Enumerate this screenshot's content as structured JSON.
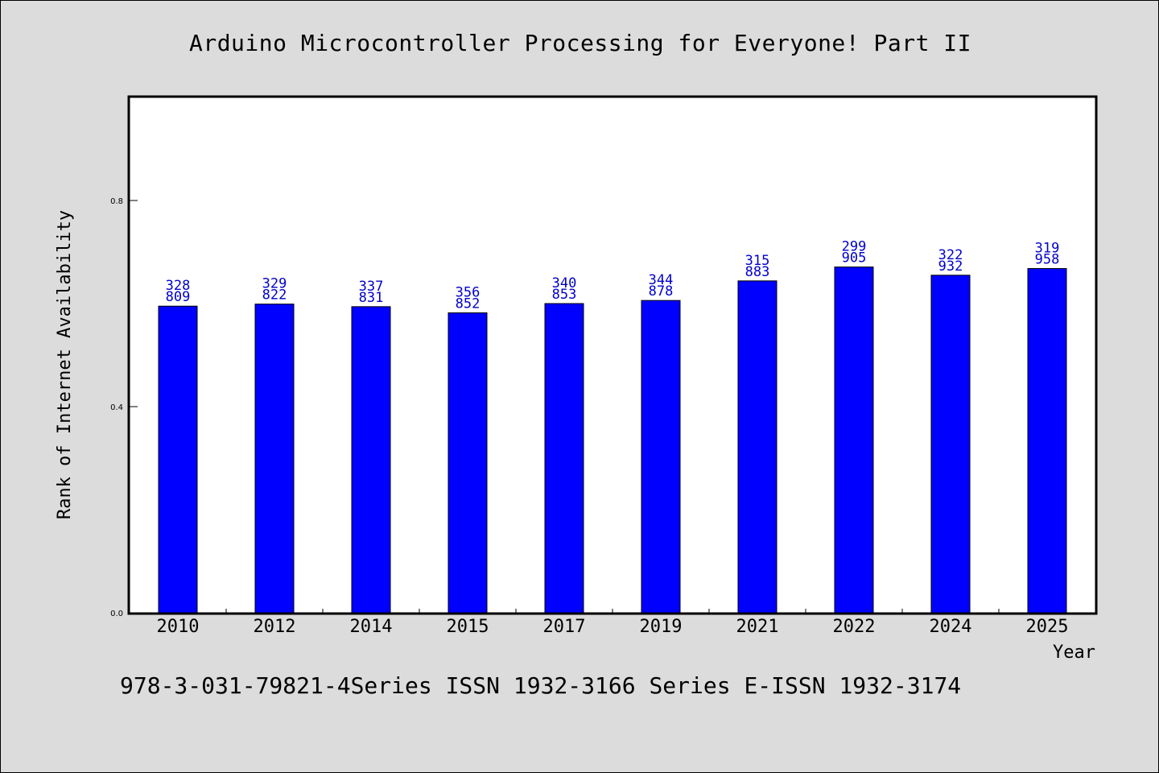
{
  "chart_data": {
    "type": "bar",
    "title": "Arduino Microcontroller Processing for Everyone! Part II",
    "xlabel": "Year",
    "ylabel": "Rank of Internet Availability",
    "categories": [
      "2010",
      "2012",
      "2014",
      "2015",
      "2017",
      "2019",
      "2021",
      "2022",
      "2024",
      "2025"
    ],
    "values": [
      0.595,
      0.599,
      0.594,
      0.582,
      0.6,
      0.606,
      0.644,
      0.671,
      0.655,
      0.668
    ],
    "data_labels": [
      [
        "328",
        "809"
      ],
      [
        "329",
        "822"
      ],
      [
        "337",
        "831"
      ],
      [
        "356",
        "852"
      ],
      [
        "340",
        "853"
      ],
      [
        "344",
        "878"
      ],
      [
        "315",
        "883"
      ],
      [
        "299",
        "905"
      ],
      [
        "322",
        "932"
      ],
      [
        "319",
        "958"
      ]
    ],
    "ylim": [
      0,
      1.0
    ],
    "yticks": [
      "0.0",
      "0.4",
      "0.8"
    ],
    "ytick_values": [
      0.0,
      0.4,
      0.8
    ],
    "grid": false,
    "bar_color": "#0000ff",
    "label_color": "#0000cc"
  },
  "footer": {
    "text": "978-3-031-79821-4Series ISSN 1932-3166 Series E-ISSN 1932-3174"
  }
}
